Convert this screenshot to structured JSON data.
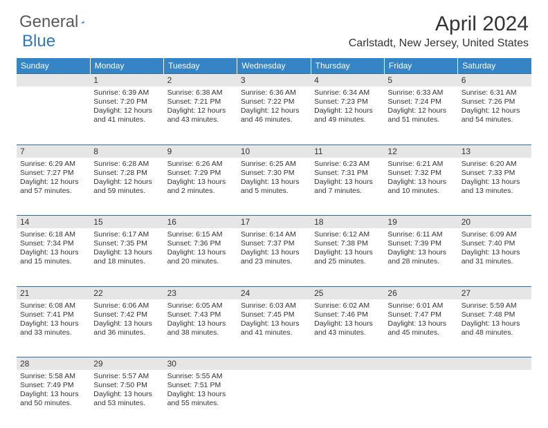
{
  "brand": {
    "part1": "General",
    "part2": "Blue"
  },
  "title": "April 2024",
  "location": "Carlstadt, New Jersey, United States",
  "colors": {
    "header_bg": "#3484c6",
    "header_text": "#ffffff",
    "daynum_bg": "#e6e6e6",
    "border": "#2f6aa0",
    "text": "#333333",
    "logo_gray": "#5a5a5a",
    "logo_blue": "#2f78b7"
  },
  "weekdays": [
    "Sunday",
    "Monday",
    "Tuesday",
    "Wednesday",
    "Thursday",
    "Friday",
    "Saturday"
  ],
  "weeks": [
    [
      null,
      {
        "n": "1",
        "sr": "6:39 AM",
        "ss": "7:20 PM",
        "dl": "12 hours and 41 minutes."
      },
      {
        "n": "2",
        "sr": "6:38 AM",
        "ss": "7:21 PM",
        "dl": "12 hours and 43 minutes."
      },
      {
        "n": "3",
        "sr": "6:36 AM",
        "ss": "7:22 PM",
        "dl": "12 hours and 46 minutes."
      },
      {
        "n": "4",
        "sr": "6:34 AM",
        "ss": "7:23 PM",
        "dl": "12 hours and 49 minutes."
      },
      {
        "n": "5",
        "sr": "6:33 AM",
        "ss": "7:24 PM",
        "dl": "12 hours and 51 minutes."
      },
      {
        "n": "6",
        "sr": "6:31 AM",
        "ss": "7:26 PM",
        "dl": "12 hours and 54 minutes."
      }
    ],
    [
      {
        "n": "7",
        "sr": "6:29 AM",
        "ss": "7:27 PM",
        "dl": "12 hours and 57 minutes."
      },
      {
        "n": "8",
        "sr": "6:28 AM",
        "ss": "7:28 PM",
        "dl": "12 hours and 59 minutes."
      },
      {
        "n": "9",
        "sr": "6:26 AM",
        "ss": "7:29 PM",
        "dl": "13 hours and 2 minutes."
      },
      {
        "n": "10",
        "sr": "6:25 AM",
        "ss": "7:30 PM",
        "dl": "13 hours and 5 minutes."
      },
      {
        "n": "11",
        "sr": "6:23 AM",
        "ss": "7:31 PM",
        "dl": "13 hours and 7 minutes."
      },
      {
        "n": "12",
        "sr": "6:21 AM",
        "ss": "7:32 PM",
        "dl": "13 hours and 10 minutes."
      },
      {
        "n": "13",
        "sr": "6:20 AM",
        "ss": "7:33 PM",
        "dl": "13 hours and 13 minutes."
      }
    ],
    [
      {
        "n": "14",
        "sr": "6:18 AM",
        "ss": "7:34 PM",
        "dl": "13 hours and 15 minutes."
      },
      {
        "n": "15",
        "sr": "6:17 AM",
        "ss": "7:35 PM",
        "dl": "13 hours and 18 minutes."
      },
      {
        "n": "16",
        "sr": "6:15 AM",
        "ss": "7:36 PM",
        "dl": "13 hours and 20 minutes."
      },
      {
        "n": "17",
        "sr": "6:14 AM",
        "ss": "7:37 PM",
        "dl": "13 hours and 23 minutes."
      },
      {
        "n": "18",
        "sr": "6:12 AM",
        "ss": "7:38 PM",
        "dl": "13 hours and 25 minutes."
      },
      {
        "n": "19",
        "sr": "6:11 AM",
        "ss": "7:39 PM",
        "dl": "13 hours and 28 minutes."
      },
      {
        "n": "20",
        "sr": "6:09 AM",
        "ss": "7:40 PM",
        "dl": "13 hours and 31 minutes."
      }
    ],
    [
      {
        "n": "21",
        "sr": "6:08 AM",
        "ss": "7:41 PM",
        "dl": "13 hours and 33 minutes."
      },
      {
        "n": "22",
        "sr": "6:06 AM",
        "ss": "7:42 PM",
        "dl": "13 hours and 36 minutes."
      },
      {
        "n": "23",
        "sr": "6:05 AM",
        "ss": "7:43 PM",
        "dl": "13 hours and 38 minutes."
      },
      {
        "n": "24",
        "sr": "6:03 AM",
        "ss": "7:45 PM",
        "dl": "13 hours and 41 minutes."
      },
      {
        "n": "25",
        "sr": "6:02 AM",
        "ss": "7:46 PM",
        "dl": "13 hours and 43 minutes."
      },
      {
        "n": "26",
        "sr": "6:01 AM",
        "ss": "7:47 PM",
        "dl": "13 hours and 45 minutes."
      },
      {
        "n": "27",
        "sr": "5:59 AM",
        "ss": "7:48 PM",
        "dl": "13 hours and 48 minutes."
      }
    ],
    [
      {
        "n": "28",
        "sr": "5:58 AM",
        "ss": "7:49 PM",
        "dl": "13 hours and 50 minutes."
      },
      {
        "n": "29",
        "sr": "5:57 AM",
        "ss": "7:50 PM",
        "dl": "13 hours and 53 minutes."
      },
      {
        "n": "30",
        "sr": "5:55 AM",
        "ss": "7:51 PM",
        "dl": "13 hours and 55 minutes."
      },
      null,
      null,
      null,
      null
    ]
  ],
  "labels": {
    "sunrise": "Sunrise:",
    "sunset": "Sunset:",
    "daylight": "Daylight:"
  }
}
